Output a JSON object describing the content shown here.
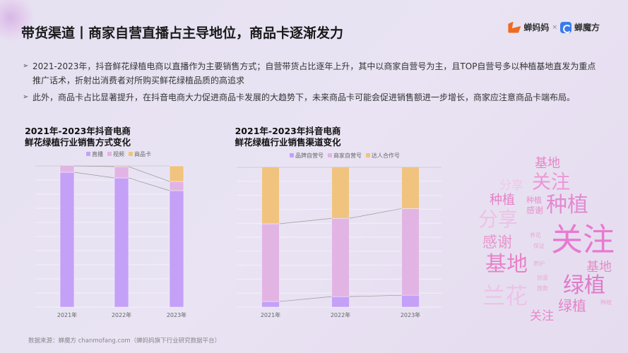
{
  "header": {
    "title": "带货渠道丨商家自营直播占主导地位，商品卡逐渐发力",
    "logo_left": "蝉妈妈",
    "logo_sep": "×",
    "logo_right": "蝉魔方"
  },
  "bullets": [
    "2021-2023年，抖音鲜花绿植电商以直播作为主要销售方式；自营带货占比逐年上升，其中以商家自营号为主，且TOP自营号多以种植基地直发为重点推广话术，折射出消费者对所购买鲜花绿植品质的高追求",
    "此外，商品卡占比显著提升，在抖音电商大力促进商品卡发展的大趋势下，未来商品卡可能会促进销售额进一步增长，商家应注意商品卡端布局。"
  ],
  "source": "数据来源：蝉魔方   chanmofang.com（蝉妈妈旗下行业研究数据平台）",
  "chart_data": [
    {
      "type": "bar",
      "stacked": true,
      "title": "2021年-2023年抖音电商\n鲜花绿植行业销售方式变化",
      "title_lines": [
        "2021年-2023年抖音电商",
        "鲜花绿植行业销售方式变化"
      ],
      "categories": [
        "2021年",
        "2022年",
        "2023年"
      ],
      "ylim": [
        0,
        100
      ],
      "grid": true,
      "legend": "top",
      "series": [
        {
          "name": "直播",
          "color": "#c4a0f7",
          "values": [
            95.5,
            91.5,
            82.5
          ]
        },
        {
          "name": "视频",
          "color": "#e2b4e4",
          "values": [
            4.5,
            8,
            6.5
          ]
        },
        {
          "name": "商品卡",
          "color": "#f0c47e",
          "values": [
            0,
            0.5,
            11
          ]
        }
      ]
    },
    {
      "type": "bar",
      "stacked": true,
      "title_lines": [
        "2021年-2023年抖音电商",
        "鲜花绿植行业销售渠道变化"
      ],
      "categories": [
        "2021年",
        "2022年",
        "2023年"
      ],
      "ylim": [
        0,
        100
      ],
      "grid": true,
      "legend": "top",
      "series": [
        {
          "name": "品牌自营号",
          "color": "#c4a0f7",
          "values": [
            4,
            7.5,
            8.5
          ]
        },
        {
          "name": "商家自营号",
          "color": "#e2b4e4",
          "values": [
            55.6,
            56,
            62
          ]
        },
        {
          "name": "达人合作号",
          "color": "#f0c47e",
          "values": [
            40.4,
            36.5,
            29.5
          ]
        }
      ]
    }
  ],
  "word_cloud": [
    {
      "t": "关注",
      "c": "#e87ad0"
    },
    {
      "t": "绿植",
      "c": "#e07ac8"
    },
    {
      "t": "基地",
      "c": "#e882c8"
    },
    {
      "t": "兰花",
      "c": "#eec2e8"
    },
    {
      "t": "种植",
      "c": "#e48ad0"
    },
    {
      "t": "关注",
      "c": "#ec96d6"
    },
    {
      "t": "分享",
      "c": "#efc0e6"
    },
    {
      "t": "基地",
      "c": "#e886c6"
    },
    {
      "t": "分享",
      "c": "#f0c8e8"
    },
    {
      "t": "种植",
      "c": "#e87ec6"
    },
    {
      "t": "感谢",
      "c": "#e894cc"
    },
    {
      "t": "种植",
      "c": "#e890cc"
    },
    {
      "t": "感谢",
      "c": "#e890cc"
    },
    {
      "t": "基地",
      "c": "#e48cc8"
    },
    {
      "t": "绿植",
      "c": "#e484c8"
    },
    {
      "t": "关注",
      "c": "#e888cc"
    },
    {
      "t": "养花",
      "c": "#eaa8d8"
    },
    {
      "t": "保证",
      "c": "#eaa8d8"
    },
    {
      "t": "养护",
      "c": "#eaa8d8"
    },
    {
      "t": "创意",
      "c": "#eaa8d8"
    },
    {
      "t": "放数",
      "c": "#eaa8d8"
    },
    {
      "t": "种植",
      "c": "#eaa8d8"
    }
  ]
}
